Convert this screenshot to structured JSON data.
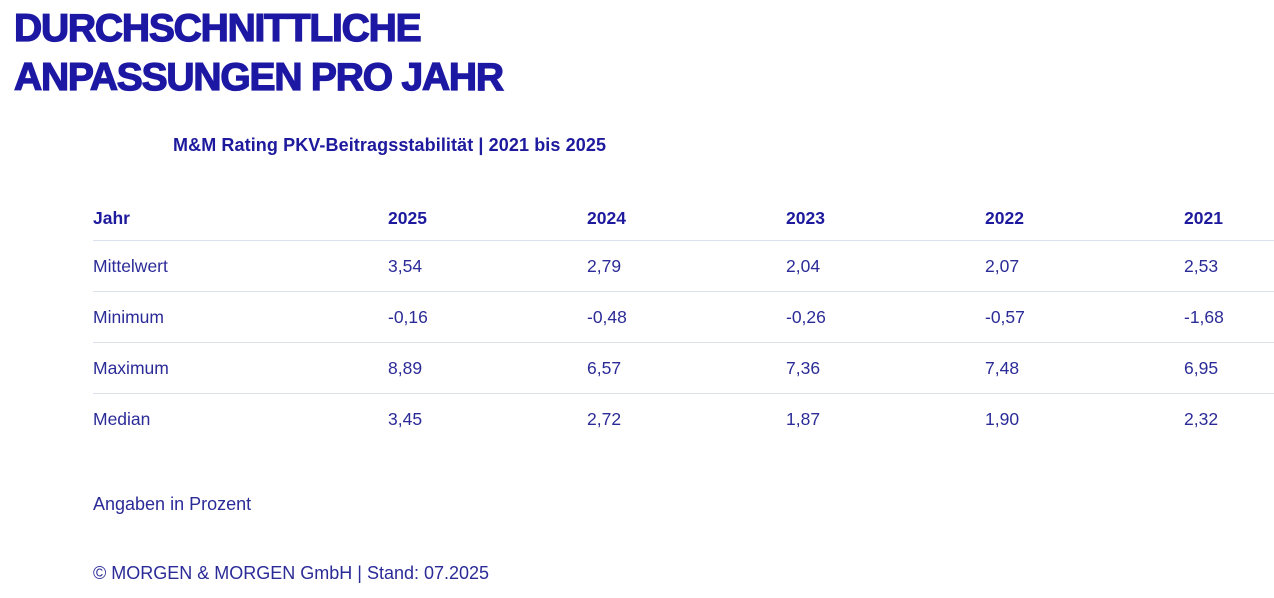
{
  "page": {
    "title": "DURCHSCHNITTLICHE ANPASSUNGEN PRO JAHR",
    "subtitle": "M&M Rating PKV-Beitragsstabilität | 2021 bis 2025"
  },
  "table": {
    "headers": [
      "Jahr",
      "2025",
      "2024",
      "2023",
      "2022",
      "2021"
    ],
    "rows": [
      {
        "label": "Mittelwert",
        "values": [
          "3,54",
          "2,79",
          "2,04",
          "2,07",
          "2,53"
        ]
      },
      {
        "label": "Minimum",
        "values": [
          "-0,16",
          "-0,48",
          "-0,26",
          "-0,57",
          "-1,68"
        ]
      },
      {
        "label": "Maximum",
        "values": [
          "8,89",
          "6,57",
          "7,36",
          "7,48",
          "6,95"
        ]
      },
      {
        "label": "Median",
        "values": [
          "3,45",
          "2,72",
          "1,87",
          "1,90",
          "2,32"
        ]
      }
    ]
  },
  "footer": {
    "note": "Angaben in Prozent",
    "copyright": "© MORGEN & MORGEN GmbH | Stand: 07.2025"
  },
  "colors": {
    "title_blue": "#1d18a3",
    "header_blue": "#1e1a9e",
    "body_blue": "#2b2b98",
    "divider": "#d9e1ea",
    "background": "#ffffff"
  },
  "chart_data": {
    "type": "table",
    "title": "DURCHSCHNITTLICHE ANPASSUNGEN PRO JAHR",
    "subtitle": "M&M Rating PKV-Beitragsstabilität | 2021 bis 2025",
    "unit": "Prozent",
    "columns": [
      "Jahr",
      "2025",
      "2024",
      "2023",
      "2022",
      "2021"
    ],
    "rows": [
      {
        "label": "Mittelwert",
        "values": [
          3.54,
          2.79,
          2.04,
          2.07,
          2.53
        ]
      },
      {
        "label": "Minimum",
        "values": [
          -0.16,
          -0.48,
          -0.26,
          -0.57,
          -1.68
        ]
      },
      {
        "label": "Maximum",
        "values": [
          8.89,
          6.57,
          7.36,
          7.48,
          6.95
        ]
      },
      {
        "label": "Median",
        "values": [
          3.45,
          2.72,
          1.87,
          1.9,
          2.32
        ]
      }
    ],
    "source": "© MORGEN & MORGEN GmbH | Stand: 07.2025"
  }
}
